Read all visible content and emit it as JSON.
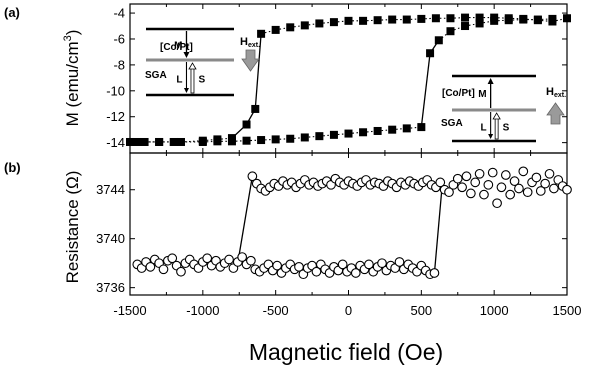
{
  "chart_data": [
    {
      "panel": "(a)",
      "type": "line",
      "markers": "filled-square",
      "ylabel": "M (emu/cm",
      "ylabel_sup": "3",
      "ylabel_close": ")",
      "xlim": [
        -1500,
        1500
      ],
      "ylim": [
        -14.8,
        -3.3
      ],
      "yticks": [
        -4,
        -6,
        -8,
        -10,
        -12,
        -14
      ],
      "xticks": [
        -1500,
        -1000,
        -500,
        0,
        500,
        1000,
        1500
      ],
      "series": [
        {
          "branch": "upper",
          "x": [
            -1450,
            -1300,
            -1150,
            -1000,
            -900,
            -800,
            -700,
            -640,
            -600,
            -500,
            -400,
            -300,
            -200,
            -100,
            0,
            100,
            200,
            300,
            400,
            500,
            600,
            700,
            800,
            900,
            1000,
            1100,
            1200,
            1300,
            1400,
            1500
          ],
          "y": [
            -13.95,
            -13.95,
            -13.95,
            -13.85,
            -13.75,
            -13.65,
            -12.6,
            -11.4,
            -5.6,
            -5.3,
            -5.1,
            -4.95,
            -4.8,
            -4.7,
            -4.6,
            -4.6,
            -4.55,
            -4.5,
            -4.5,
            -4.45,
            -4.4,
            -4.4,
            -4.35,
            -4.35,
            -4.35,
            -4.4,
            -4.45,
            -4.55,
            -4.65,
            -4.4
          ]
        },
        {
          "branch": "lower",
          "x": [
            -1500,
            -1400,
            -1300,
            -1200,
            -1000,
            -900,
            -800,
            -700,
            -600,
            -500,
            -400,
            -300,
            -200,
            -100,
            0,
            100,
            200,
            300,
            400,
            500,
            560,
            620,
            700,
            800,
            900,
            1000,
            1100,
            1200,
            1300,
            1400
          ],
          "y": [
            -13.95,
            -13.95,
            -13.95,
            -13.95,
            -13.95,
            -13.9,
            -13.9,
            -13.85,
            -13.8,
            -13.75,
            -13.7,
            -13.6,
            -13.5,
            -13.4,
            -13.3,
            -13.2,
            -13.1,
            -13.0,
            -12.9,
            -12.8,
            -7.1,
            -6.1,
            -5.4,
            -5.0,
            -4.8,
            -4.6,
            -4.55,
            -4.5,
            -4.5,
            -4.45
          ]
        }
      ],
      "insets": [
        {
          "position": "top-left",
          "layer_label": "[Co/Pt]",
          "sga_label": "SGA",
          "m_label": "M",
          "l_label": "L",
          "s_label": "S",
          "field_label": "H",
          "field_sub": "ext.",
          "field_direction": "down",
          "m_direction": "down"
        },
        {
          "position": "bottom-right",
          "layer_label": "[Co/Pt]",
          "sga_label": "SGA",
          "m_label": "M",
          "l_label": "L",
          "s_label": "S",
          "field_label": "H",
          "field_sub": "ext.",
          "field_direction": "up",
          "m_direction": "up"
        }
      ]
    },
    {
      "panel": "(b)",
      "type": "line",
      "markers": "open-circle",
      "ylabel": "Resistance (Ω)",
      "xlabel": "Magnetic field (Oe)",
      "xlim": [
        -1500,
        1500
      ],
      "ylim": [
        3735.4,
        3747.0
      ],
      "yticks": [
        3736,
        3740,
        3744
      ],
      "xticks": [
        -1500,
        -1000,
        -500,
        0,
        500,
        1000,
        1500
      ],
      "series": [
        {
          "branch": "low-resistance",
          "x": [
            -1450,
            -1420,
            -1390,
            -1360,
            -1330,
            -1300,
            -1270,
            -1240,
            -1210,
            -1180,
            -1150,
            -1120,
            -1090,
            -1060,
            -1030,
            -1000,
            -970,
            -940,
            -910,
            -880,
            -850,
            -820,
            -790,
            -760,
            -730,
            -700,
            -670,
            -640,
            -610,
            -580,
            -550,
            -520,
            -490,
            -460,
            -430,
            -400,
            -370,
            -340,
            -310,
            -280,
            -250,
            -220,
            -190,
            -160,
            -130,
            -100,
            -70,
            -40,
            -10,
            20,
            50,
            80,
            110,
            140,
            170,
            200,
            230,
            260,
            290,
            320,
            350,
            380,
            410,
            440,
            470,
            500,
            530,
            560,
            590
          ],
          "y": [
            3737.9,
            3737.6,
            3738.1,
            3737.7,
            3738.3,
            3738.0,
            3737.5,
            3738.2,
            3738.4,
            3737.8,
            3737.3,
            3738.0,
            3738.3,
            3737.9,
            3737.6,
            3738.1,
            3738.4,
            3737.8,
            3738.2,
            3737.7,
            3738.0,
            3738.3,
            3737.6,
            3738.1,
            3738.5,
            3737.9,
            3738.2,
            3737.5,
            3737.3,
            3737.6,
            3737.9,
            3737.4,
            3737.8,
            3737.2,
            3737.6,
            3737.9,
            3737.5,
            3737.7,
            3737.1,
            3737.6,
            3737.8,
            3737.3,
            3737.9,
            3737.5,
            3737.2,
            3737.7,
            3737.4,
            3737.9,
            3737.3,
            3737.6,
            3737.2,
            3737.8,
            3737.5,
            3737.9,
            3737.3,
            3737.7,
            3738.0,
            3737.4,
            3737.8,
            3737.6,
            3738.1,
            3737.5,
            3737.9,
            3737.6,
            3737.3,
            3737.8,
            3737.4,
            3737.1,
            3737.2
          ]
        },
        {
          "branch": "high-resistance",
          "x": [
            -660,
            -630,
            -600,
            -570,
            -540,
            -510,
            -480,
            -450,
            -420,
            -390,
            -360,
            -330,
            -300,
            -270,
            -240,
            -210,
            -180,
            -150,
            -120,
            -90,
            -60,
            -30,
            0,
            30,
            60,
            90,
            120,
            150,
            180,
            210,
            240,
            270,
            300,
            330,
            360,
            390,
            420,
            450,
            480,
            510,
            540,
            570,
            600,
            630,
            660,
            690,
            720,
            750,
            780,
            810,
            840,
            870,
            900,
            930,
            960,
            990,
            1020,
            1050,
            1080,
            1110,
            1140,
            1170,
            1200,
            1230,
            1260,
            1290,
            1320,
            1350,
            1380,
            1410,
            1440,
            1470,
            1500
          ],
          "y": [
            3745.1,
            3744.5,
            3744.1,
            3743.9,
            3744.2,
            3744.5,
            3744.3,
            3744.7,
            3744.4,
            3744.6,
            3744.2,
            3744.5,
            3744.8,
            3744.4,
            3744.6,
            3744.3,
            3744.5,
            3744.7,
            3744.4,
            3744.9,
            3744.6,
            3744.4,
            3744.7,
            3744.5,
            3744.3,
            3744.6,
            3744.8,
            3744.4,
            3744.6,
            3744.5,
            3744.3,
            3744.7,
            3744.5,
            3744.2,
            3744.6,
            3744.4,
            3744.7,
            3744.5,
            3744.3,
            3744.6,
            3744.8,
            3744.4,
            3744.2,
            3744.6,
            3744.0,
            3743.8,
            3744.4,
            3744.9,
            3744.2,
            3745.1,
            3743.7,
            3744.6,
            3745.3,
            3743.6,
            3744.4,
            3745.4,
            3742.9,
            3744.2,
            3745.2,
            3743.6,
            3744.7,
            3744.1,
            3745.5,
            3743.8,
            3744.6,
            3745.0,
            3743.9,
            3744.5,
            3745.3,
            3744.1,
            3744.8,
            3744.3,
            3744.0
          ]
        }
      ]
    }
  ]
}
